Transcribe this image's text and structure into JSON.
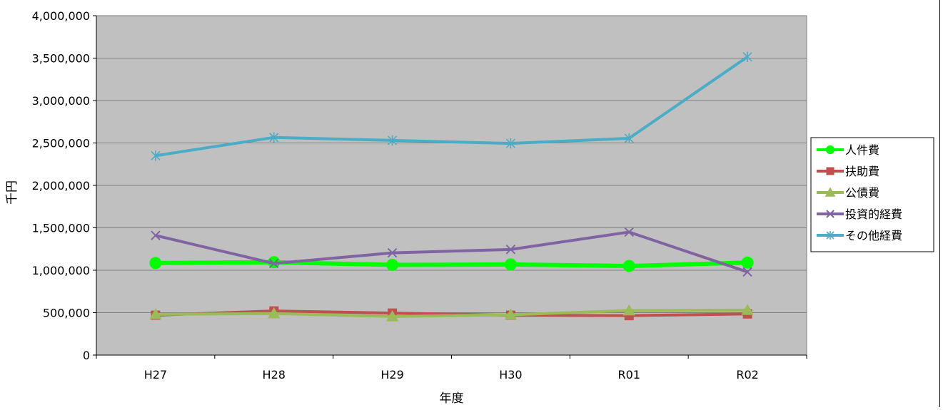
{
  "chart_data": {
    "type": "line",
    "categories": [
      "H27",
      "H28",
      "H29",
      "H30",
      "R01",
      "R02"
    ],
    "xlabel": "年度",
    "ylabel": "千円",
    "ylim": [
      0,
      4000000
    ],
    "yticks": [
      0,
      500000,
      1000000,
      1500000,
      2000000,
      2500000,
      3000000,
      3500000,
      4000000
    ],
    "ytick_labels": [
      "0",
      "500,000",
      "1,000,000",
      "1,500,000",
      "2,000,000",
      "2,500,000",
      "3,000,000",
      "3,500,000",
      "4,000,000"
    ],
    "grid": true,
    "legend_position": "right",
    "plot_background": "#c0c0c0",
    "series": [
      {
        "name": "人件費",
        "color": "#00ff00",
        "marker": "circle",
        "values": [
          1085000,
          1095000,
          1063000,
          1068000,
          1050000,
          1090000
        ]
      },
      {
        "name": "扶助費",
        "color": "#c0504d",
        "marker": "square",
        "values": [
          470000,
          520000,
          495000,
          470000,
          465000,
          485000
        ]
      },
      {
        "name": "公債費",
        "color": "#9bbb59",
        "marker": "triangle",
        "values": [
          480000,
          490000,
          455000,
          475000,
          525000,
          530000
        ]
      },
      {
        "name": "投資的経費",
        "color": "#8064a2",
        "marker": "x",
        "values": [
          1410000,
          1080000,
          1205000,
          1245000,
          1450000,
          980000
        ]
      },
      {
        "name": "その他経費",
        "color": "#4bacc6",
        "marker": "star",
        "values": [
          2350000,
          2565000,
          2530000,
          2495000,
          2555000,
          3515000
        ]
      }
    ]
  }
}
